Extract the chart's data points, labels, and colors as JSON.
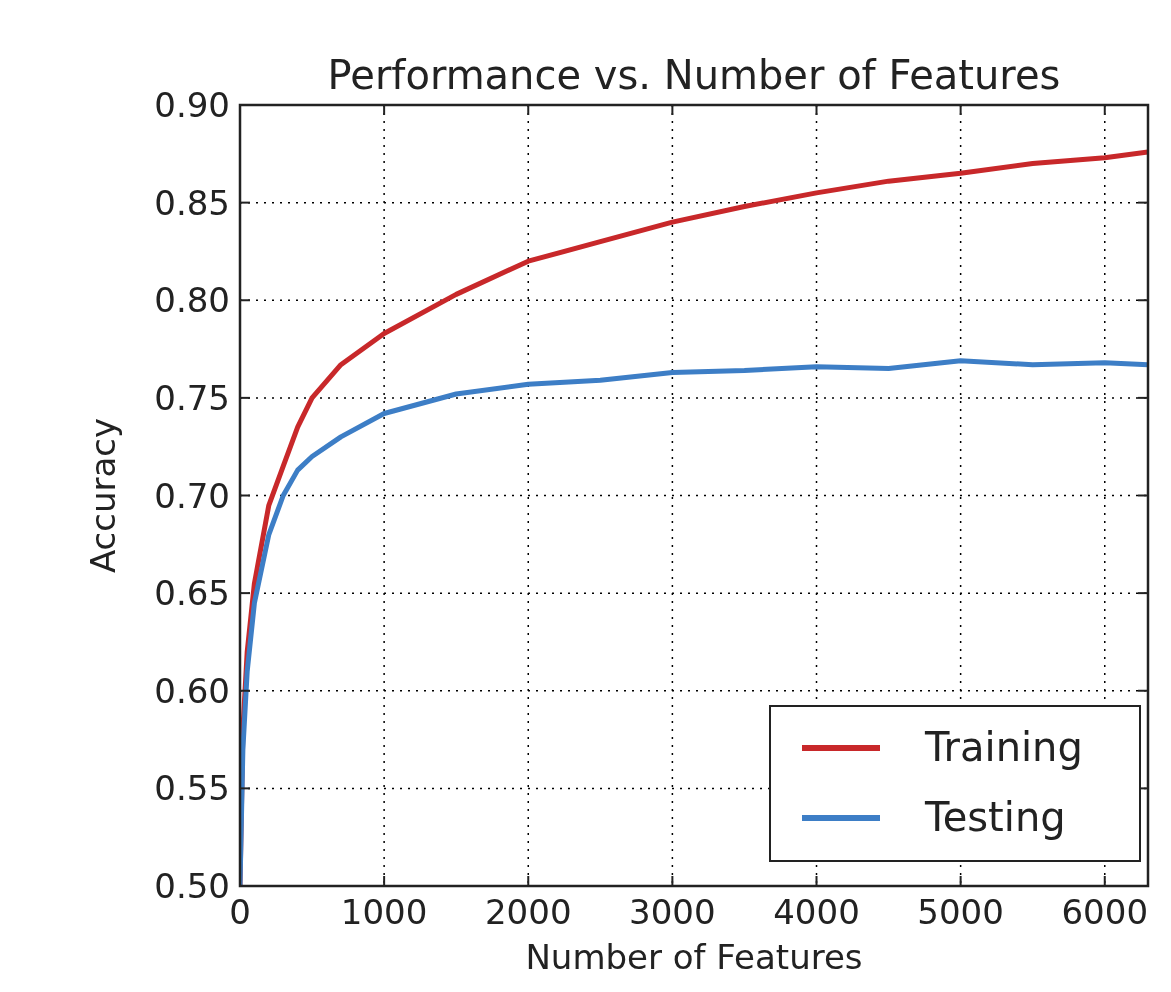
{
  "chart_data": {
    "type": "line",
    "title": "Performance vs. Number of Features",
    "xlabel": "Number of Features",
    "ylabel": "Accuracy",
    "xlim": [
      0,
      6300
    ],
    "xticks": [
      0,
      1000,
      2000,
      3000,
      4000,
      5000,
      6000
    ],
    "ylim": [
      0.5,
      0.9
    ],
    "yticks": [
      {
        "value": 0.5,
        "label": "0.50"
      },
      {
        "value": 0.55,
        "label": "0.55"
      },
      {
        "value": 0.6,
        "label": "0.60"
      },
      {
        "value": 0.65,
        "label": "0.65"
      },
      {
        "value": 0.7,
        "label": "0.70"
      },
      {
        "value": 0.75,
        "label": "0.75"
      },
      {
        "value": 0.8,
        "label": "0.80"
      },
      {
        "value": 0.85,
        "label": "0.85"
      },
      {
        "value": 0.9,
        "label": "0.90"
      }
    ],
    "grid": true,
    "legend": "bottom right",
    "line_style": "solid",
    "series": [
      {
        "name": "Training",
        "color": "#c8282a",
        "x": [
          0,
          20,
          50,
          100,
          200,
          300,
          400,
          500,
          700,
          1000,
          1500,
          2000,
          2500,
          3000,
          3500,
          4000,
          4500,
          5000,
          5500,
          6000,
          6300
        ],
        "values": [
          0.5,
          0.58,
          0.62,
          0.655,
          0.695,
          0.715,
          0.735,
          0.75,
          0.767,
          0.783,
          0.803,
          0.82,
          0.83,
          0.84,
          0.848,
          0.855,
          0.861,
          0.865,
          0.87,
          0.873,
          0.876
        ]
      },
      {
        "name": "Testing",
        "color": "#3d7ec6",
        "x": [
          0,
          20,
          50,
          100,
          200,
          300,
          400,
          500,
          700,
          1000,
          1500,
          2000,
          2500,
          3000,
          3500,
          4000,
          4500,
          5000,
          5500,
          6000,
          6300
        ],
        "values": [
          0.5,
          0.57,
          0.61,
          0.645,
          0.68,
          0.7,
          0.713,
          0.72,
          0.73,
          0.742,
          0.752,
          0.757,
          0.759,
          0.763,
          0.764,
          0.766,
          0.765,
          0.769,
          0.767,
          0.768,
          0.767
        ]
      }
    ]
  }
}
